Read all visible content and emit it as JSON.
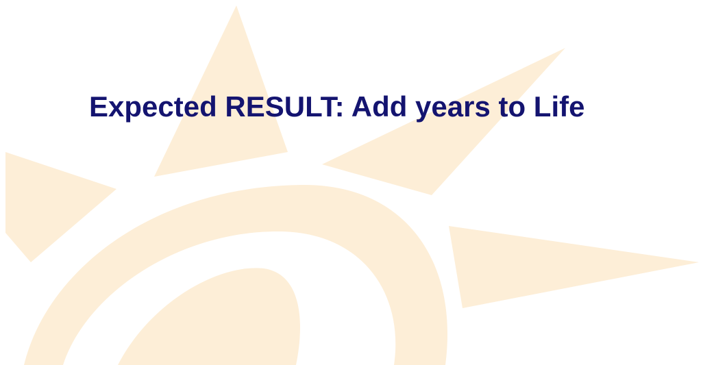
{
  "slide": {
    "title": "Expected RESULT: Add years to Life"
  }
}
